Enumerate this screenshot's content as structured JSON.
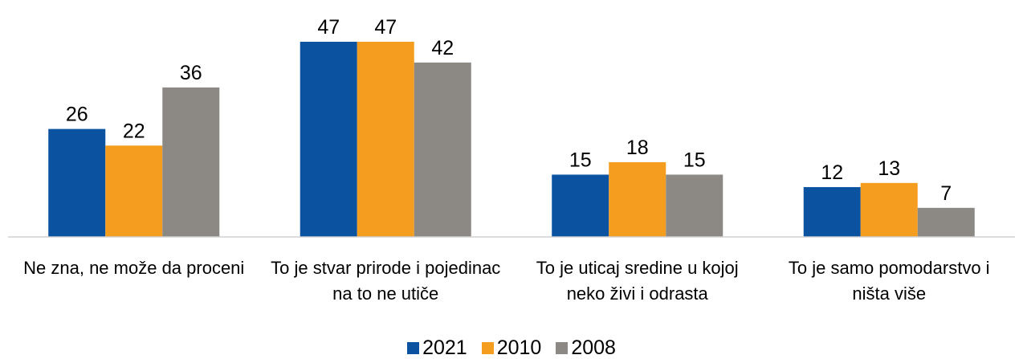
{
  "chart_data": {
    "type": "bar",
    "categories": [
      "Ne zna, ne može da proceni",
      "To je stvar prirode i pojedinac na to ne utiče",
      "To je uticaj sredine u kojoj neko živi i odrasta",
      "To je samo pomodarstvo i ništa više"
    ],
    "series": [
      {
        "name": "2021",
        "color": "#0b52a0",
        "values": [
          26,
          47,
          15,
          12
        ]
      },
      {
        "name": "2010",
        "color": "#f59d1e",
        "values": [
          22,
          47,
          18,
          13
        ]
      },
      {
        "name": "2008",
        "color": "#8c8984",
        "values": [
          36,
          42,
          15,
          7
        ]
      }
    ],
    "ylim": [
      0,
      50
    ],
    "legend": "bottom"
  }
}
